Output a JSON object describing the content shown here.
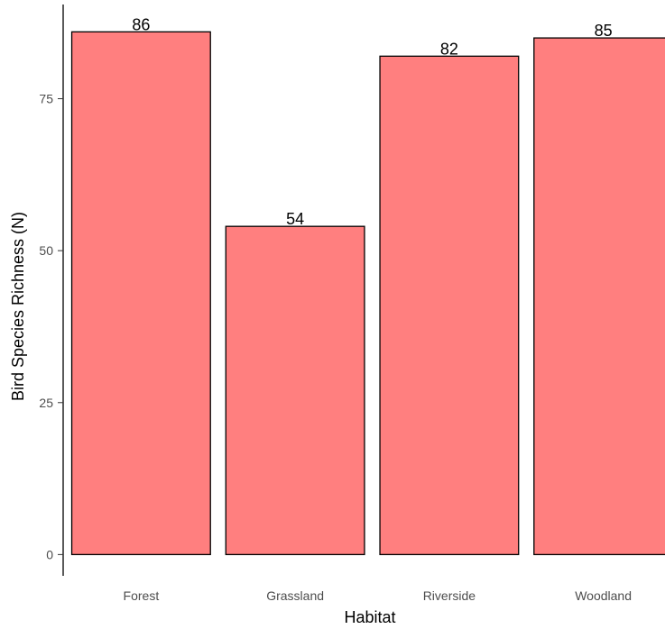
{
  "chart_data": {
    "type": "bar",
    "title": "",
    "xlabel": "Habitat",
    "ylabel": "Bird Species Richness (N)",
    "categories": [
      "Forest",
      "Grassland",
      "Riverside",
      "Woodland"
    ],
    "values": [
      86,
      54,
      82,
      85
    ],
    "data_labels": [
      "86",
      "54",
      "82",
      "85"
    ],
    "yticks": [
      0,
      25,
      50,
      75
    ],
    "ytick_labels": [
      "0",
      "25",
      "50",
      "75"
    ],
    "ylim": [
      -3.5,
      90.5
    ],
    "grid": false,
    "legend": "none",
    "bar_fill": "#ff7f7f",
    "bar_stroke": "#000000"
  }
}
